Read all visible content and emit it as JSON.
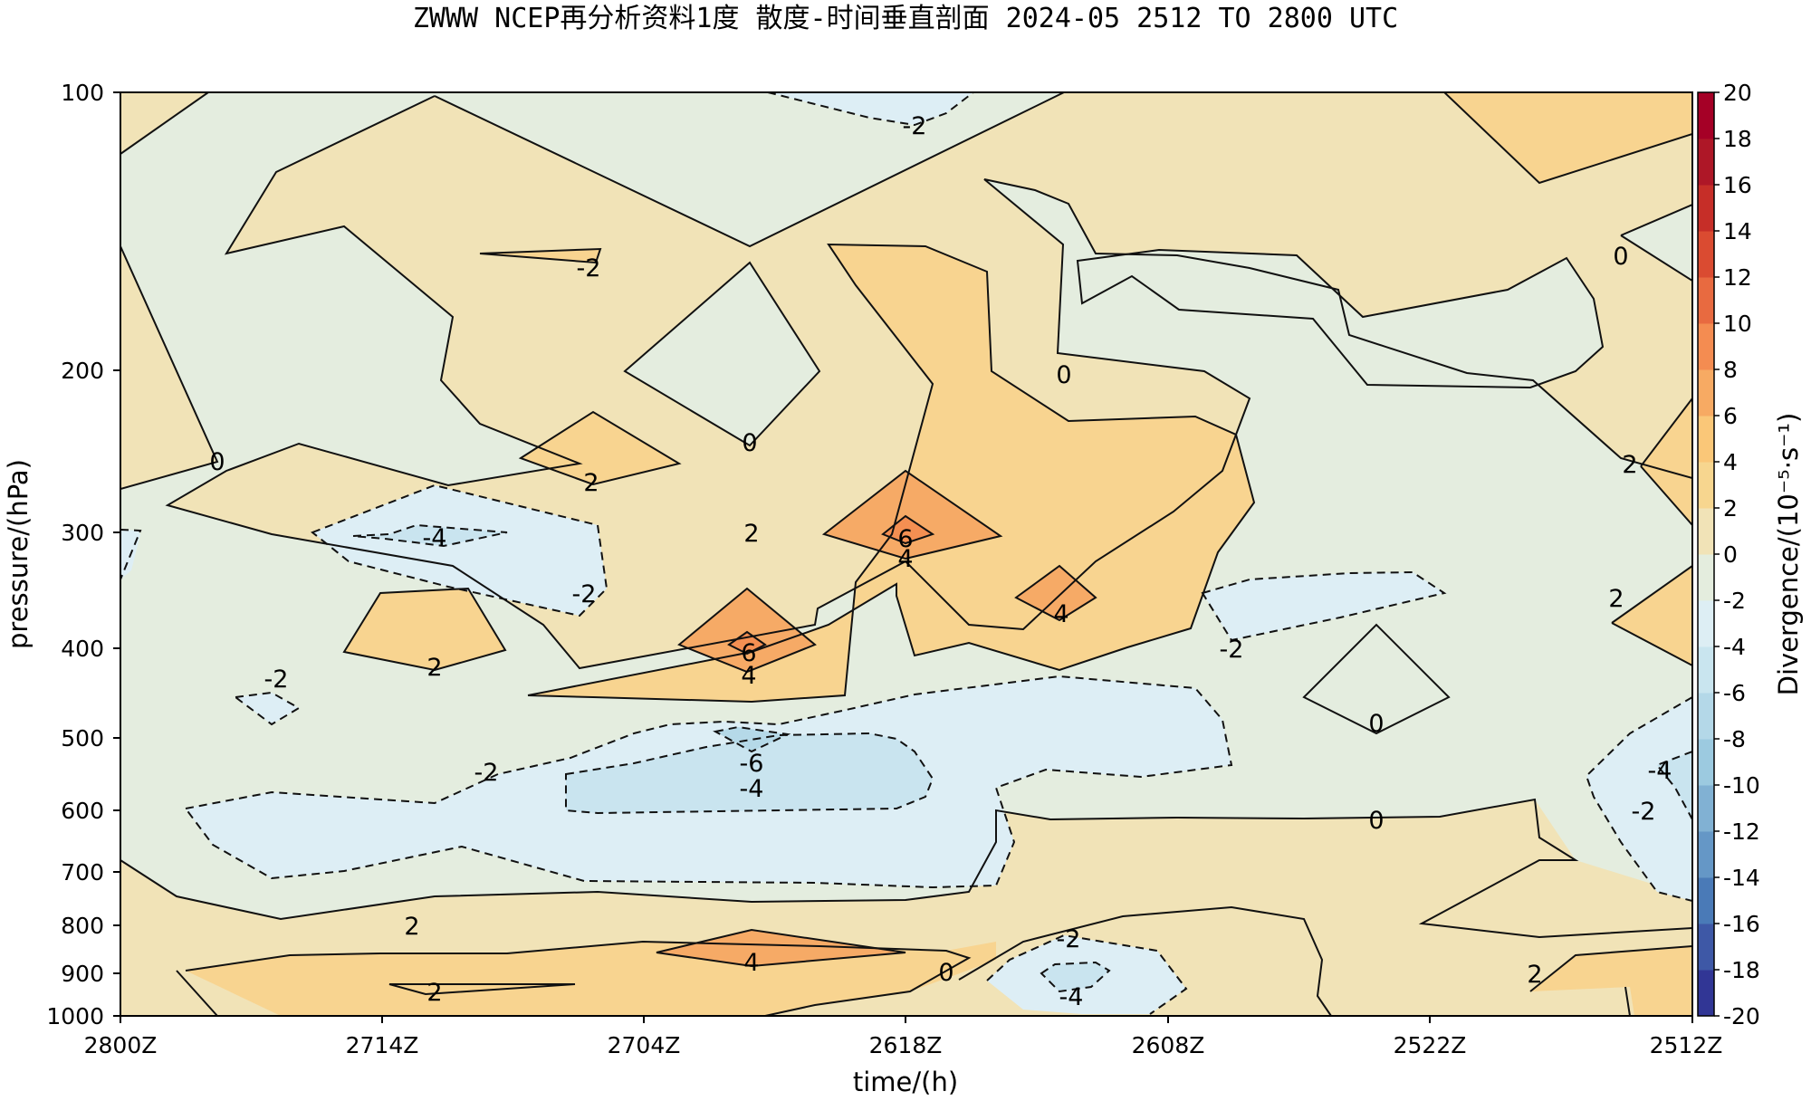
{
  "chart_data": {
    "type": "heatmap",
    "subtype": "filled-contour time-pressure cross section",
    "title": "ZWWW NCEP再分析资料1度 散度-时间垂直剖面 2024-05 2512 TO 2800 UTC",
    "xlabel": "time/(h)",
    "ylabel": "pressure/(hPa)",
    "x_ticks": [
      "2800Z",
      "2714Z",
      "2704Z",
      "2618Z",
      "2608Z",
      "2522Z",
      "2512Z"
    ],
    "y_ticks": [
      "100",
      "200",
      "300",
      "400",
      "500",
      "600",
      "700",
      "800",
      "900",
      "1000"
    ],
    "y_range": [
      1000,
      100
    ],
    "y_scale": "log",
    "colorbar": {
      "label": "Divergence/(10⁻⁵·s⁻¹)",
      "range": [
        -20,
        20
      ],
      "step": 2,
      "ticks": [
        "20",
        "18",
        "16",
        "14",
        "12",
        "10",
        "8",
        "6",
        "4",
        "2",
        "0",
        "-2",
        "-4",
        "-6",
        "-8",
        "-10",
        "-12",
        "-14",
        "-16",
        "-18",
        "-20"
      ],
      "colormap": "RdYlBu_r",
      "colors": [
        "#313695",
        "#3e58a6",
        "#4a7ab7",
        "#6597c6",
        "#81b1d3",
        "#9ccae0",
        "#b4d8e8",
        "#c9e5ef",
        "#ddeef4",
        "#e4edde",
        "#f1e3b7",
        "#f7d68f",
        "#fac778",
        "#f7aa63",
        "#f48c51",
        "#e86a40",
        "#da4b31",
        "#c62e28",
        "#ae1727",
        "#a50026"
      ]
    },
    "contour_labels": [
      {
        "text": "-2",
        "x": "2620Z",
        "p": 115
      },
      {
        "text": "-2",
        "x": "2710Z",
        "p": 155
      },
      {
        "text": "0",
        "x": "2800Z",
        "p": 255
      },
      {
        "text": "0",
        "x": "2700Z",
        "p": 240
      },
      {
        "text": "0",
        "x": "2608Z",
        "p": 200
      },
      {
        "text": "0",
        "x": "2512Z",
        "p": 150
      },
      {
        "text": "2",
        "x": "2710Z",
        "p": 270
      },
      {
        "text": "2",
        "x": "2700Z",
        "p": 305
      },
      {
        "text": "2",
        "x": "2512Z",
        "p": 255
      },
      {
        "text": "2",
        "x": "2512Z",
        "p": 365
      },
      {
        "text": "-4",
        "x": "2710Z",
        "p": 305
      },
      {
        "text": "-2",
        "x": "2710Z",
        "p": 355
      },
      {
        "text": "6",
        "x": "2618Z",
        "p": 305
      },
      {
        "text": "4",
        "x": "2618Z",
        "p": 320
      },
      {
        "text": "4",
        "x": "2608Z",
        "p": 365
      },
      {
        "text": "2",
        "x": "2714Z",
        "p": 420
      },
      {
        "text": "6",
        "x": "2700Z",
        "p": 410
      },
      {
        "text": "4",
        "x": "2700Z",
        "p": 435
      },
      {
        "text": "-2",
        "x": "2608Z",
        "p": 405
      },
      {
        "text": "-2",
        "x": "2800Z",
        "p": 470
      },
      {
        "text": "0",
        "x": "2522Z",
        "p": 505
      },
      {
        "text": "-6",
        "x": "2700Z",
        "p": 545
      },
      {
        "text": "-4",
        "x": "2700Z",
        "p": 580
      },
      {
        "text": "-2",
        "x": "2710Z",
        "p": 560
      },
      {
        "text": "0",
        "x": "2522Z",
        "p": 635
      },
      {
        "text": "-4",
        "x": "2512Z",
        "p": 560
      },
      {
        "text": "-2",
        "x": "2512Z",
        "p": 620
      },
      {
        "text": "2",
        "x": "2714Z",
        "p": 795
      },
      {
        "text": "4",
        "x": "2700Z",
        "p": 850
      },
      {
        "text": "-2",
        "x": "2610Z",
        "p": 830
      },
      {
        "text": "0",
        "x": "2618Z",
        "p": 905
      },
      {
        "text": "2",
        "x": "2714Z",
        "p": 925
      },
      {
        "text": "-4",
        "x": "2610Z",
        "p": 950
      },
      {
        "text": "2",
        "x": "2512Z",
        "p": 895
      }
    ]
  }
}
